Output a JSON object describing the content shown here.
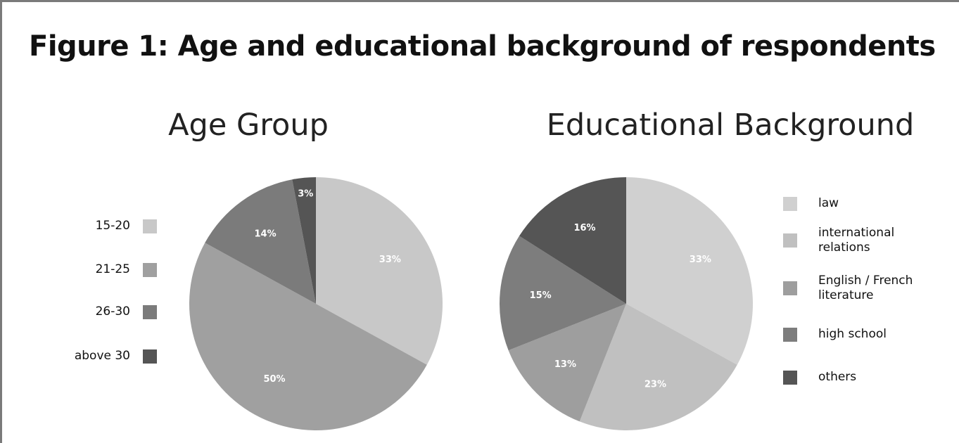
{
  "figure_title": "Figure 1: Age and educational background of respondents",
  "chart_data": [
    {
      "type": "pie",
      "title": "Age Group",
      "legend_position": "left",
      "slices": [
        {
          "label": "15-20",
          "value": 33,
          "value_label": "33%",
          "color": "#c8c8c8"
        },
        {
          "label": "21-25",
          "value": 50,
          "value_label": "50%",
          "color": "#a0a0a0"
        },
        {
          "label": "26-30",
          "value": 14,
          "value_label": "14%",
          "color": "#7b7b7b"
        },
        {
          "label": "above 30",
          "value": 3,
          "value_label": "3%",
          "color": "#555555"
        }
      ]
    },
    {
      "type": "pie",
      "title": "Educational Background",
      "legend_position": "right",
      "slices": [
        {
          "label": "law",
          "value": 33,
          "value_label": "33%",
          "color": "#d0d0d0"
        },
        {
          "label": "international relations",
          "value": 23,
          "value_label": "23%",
          "color": "#c0c0c0"
        },
        {
          "label": "English / French literature",
          "value": 13,
          "value_label": "13%",
          "color": "#9e9e9e"
        },
        {
          "label": "high school",
          "value": 15,
          "value_label": "15%",
          "color": "#7d7d7d"
        },
        {
          "label": "others",
          "value": 16,
          "value_label": "16%",
          "color": "#555555"
        }
      ]
    }
  ]
}
